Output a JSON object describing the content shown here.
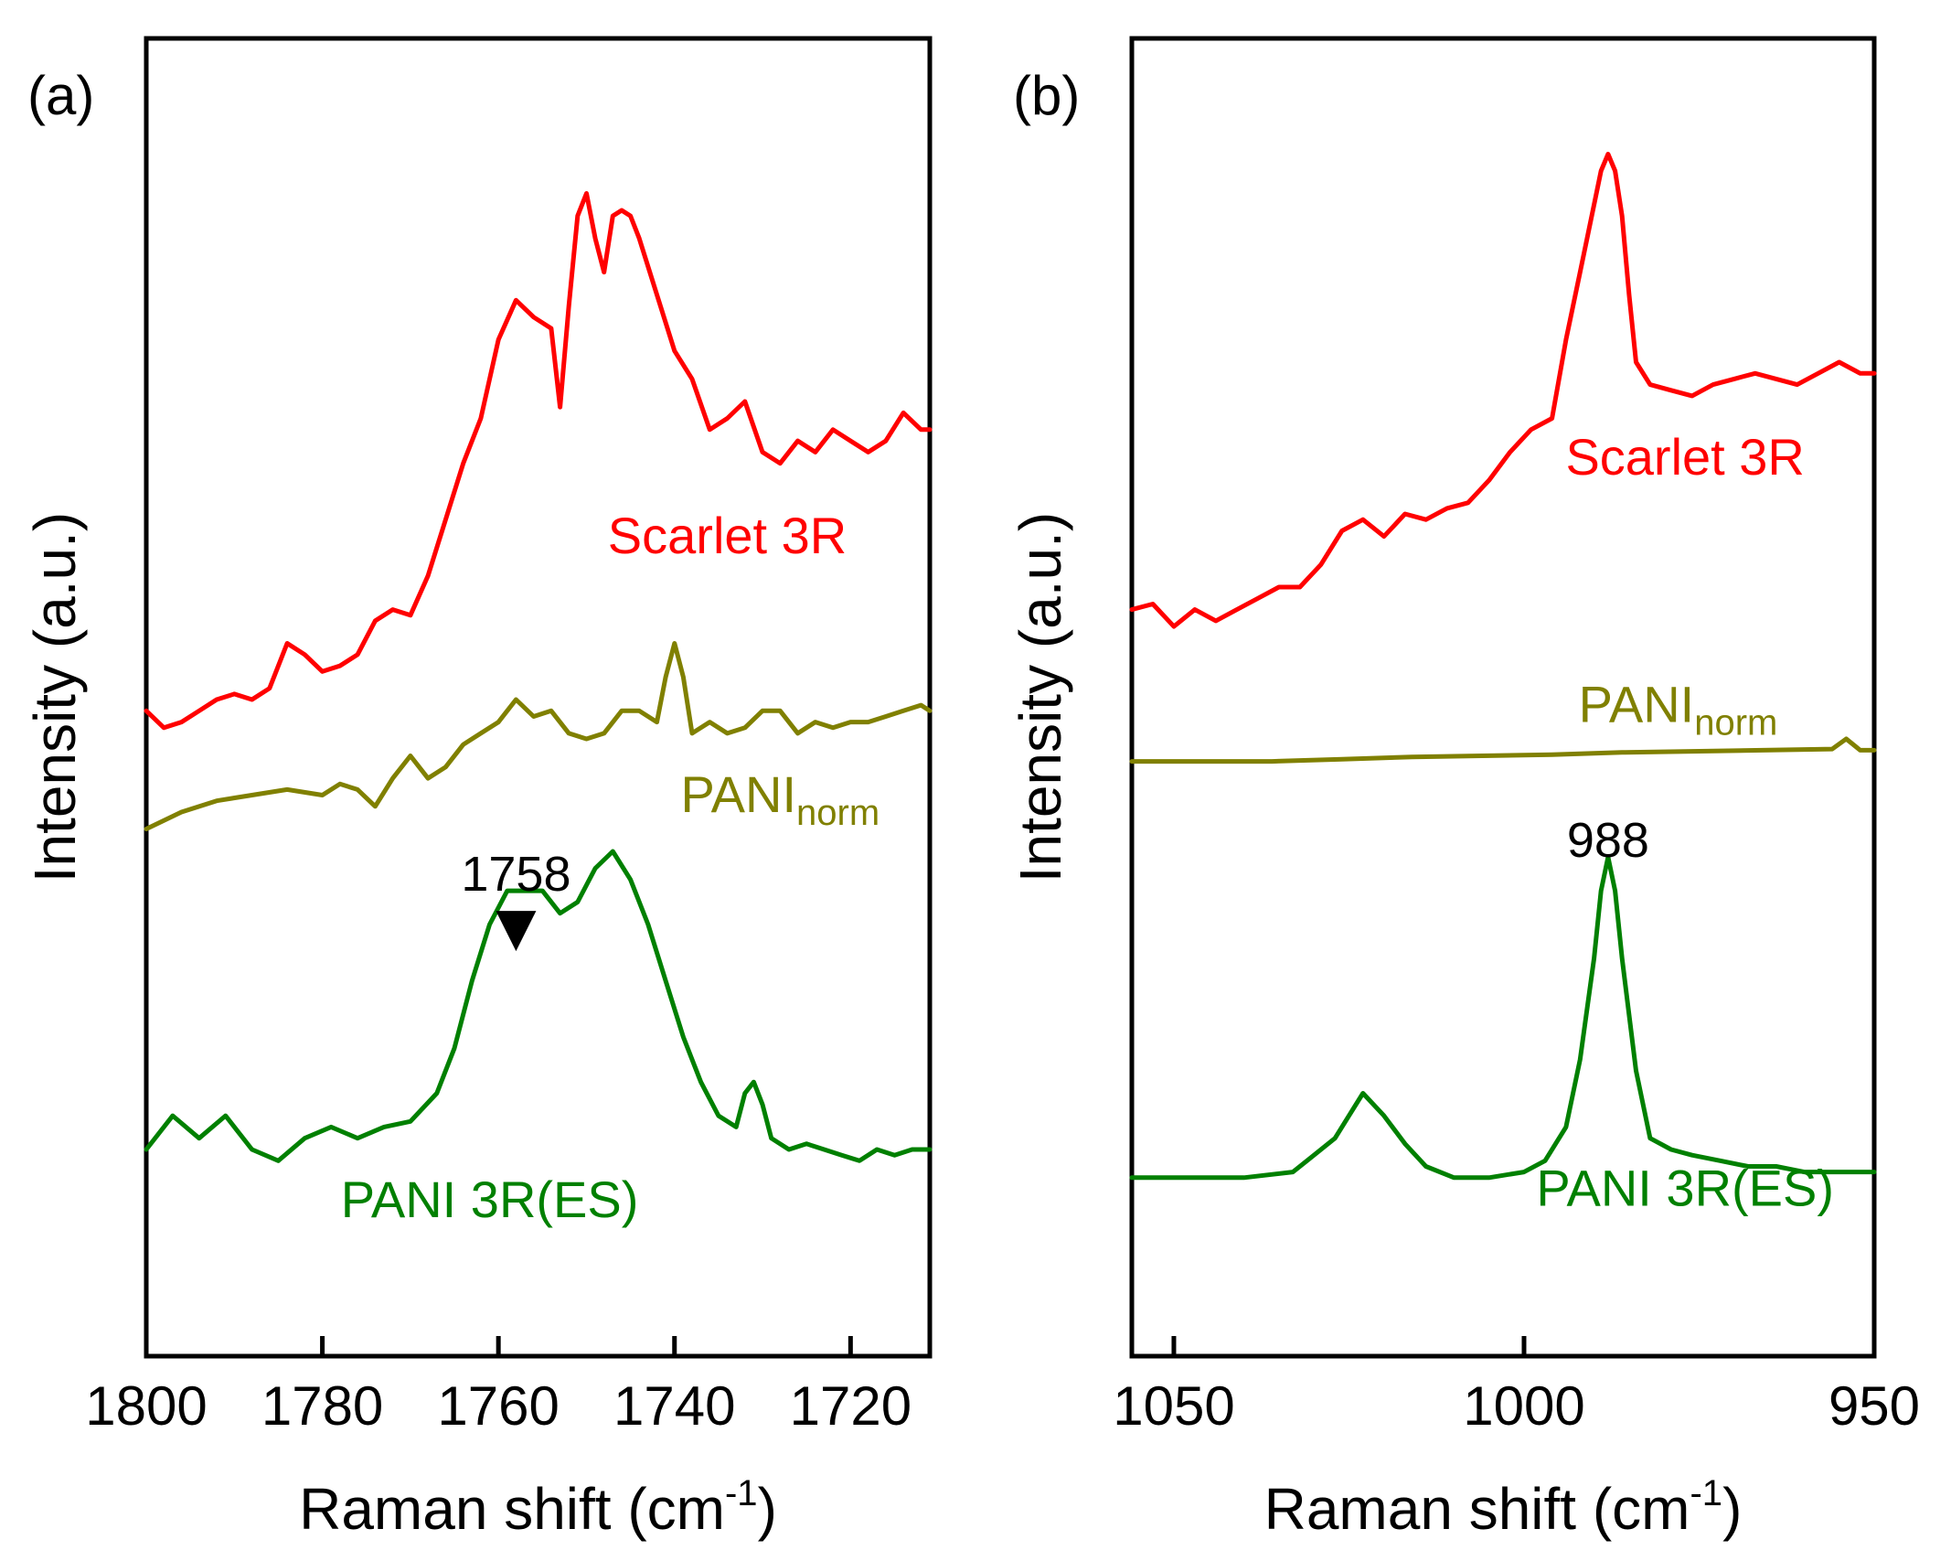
{
  "chart_data": [
    {
      "type": "line",
      "panel_label": "(a)",
      "xlabel": "Raman shift (cm",
      "xlabel_sup": "-1",
      "xlabel_end": ")",
      "ylabel": "Intensity (a.u.)",
      "xlim": [
        1800,
        1711
      ],
      "ylim": [
        0,
        100
      ],
      "x_reversed": true,
      "y_ticks_shown": false,
      "xticks": [
        1800,
        1780,
        1760,
        1740,
        1720
      ],
      "xtick_labels": [
        "1800",
        "1780",
        "1760",
        "1740",
        "1720"
      ],
      "annotations": [
        {
          "text": "1758",
          "x": 1758,
          "y": 33,
          "marker": "down-triangle"
        }
      ],
      "series": [
        {
          "name": "Scarlet 3R",
          "color": "#ff0000",
          "label_pos": {
            "x": 1734,
            "y": 63
          },
          "x": [
            1800,
            1798,
            1796,
            1794,
            1792,
            1790,
            1788,
            1786,
            1784,
            1782,
            1780,
            1778,
            1776,
            1774,
            1772,
            1770,
            1768,
            1766,
            1764,
            1762,
            1760,
            1758,
            1756,
            1754,
            1753,
            1752,
            1751,
            1750,
            1749,
            1748,
            1747,
            1746,
            1745,
            1744,
            1742,
            1740,
            1738,
            1736,
            1734,
            1732,
            1730,
            1728,
            1726,
            1724,
            1722,
            1720,
            1718,
            1716,
            1714,
            1712,
            1711
          ],
          "values": [
            49,
            47.5,
            48,
            49,
            50,
            50.5,
            50,
            51,
            55,
            54,
            52.5,
            53,
            54,
            57,
            58,
            57.5,
            61,
            66,
            71,
            75,
            82,
            85.5,
            84,
            83,
            76,
            85,
            93,
            95,
            91,
            88,
            93,
            93.5,
            93,
            91,
            86,
            81,
            78.5,
            74,
            75,
            76.5,
            72,
            71,
            73,
            72,
            74,
            73,
            72,
            73,
            75.5,
            74,
            74
          ]
        },
        {
          "name": "PANI",
          "name_sub": "norm",
          "color": "#808000",
          "label_pos": {
            "x": 1728,
            "y": 40
          },
          "x": [
            1800,
            1796,
            1792,
            1788,
            1784,
            1780,
            1778,
            1776,
            1774,
            1772,
            1770,
            1768,
            1766,
            1764,
            1762,
            1760,
            1758,
            1756,
            1754,
            1752,
            1750,
            1748,
            1746,
            1744,
            1742,
            1741,
            1740,
            1739,
            1738,
            1736,
            1734,
            1732,
            1730,
            1728,
            1726,
            1724,
            1722,
            1720,
            1718,
            1716,
            1714,
            1712,
            1711
          ],
          "values": [
            38.5,
            40,
            41,
            41.5,
            42,
            41.5,
            42.5,
            42,
            40.5,
            43,
            45,
            43,
            44,
            46,
            47,
            48,
            50,
            48.5,
            49,
            47,
            46.5,
            47,
            49,
            49,
            48,
            52,
            55,
            52,
            47,
            48,
            47,
            47.5,
            49,
            49,
            47,
            48,
            47.5,
            48,
            48,
            48.5,
            49,
            49.5,
            49
          ]
        },
        {
          "name": "PANI 3R(ES)",
          "color": "#008000",
          "label_pos": {
            "x": 1761,
            "y": 4
          },
          "x": [
            1800,
            1797,
            1794,
            1791,
            1788,
            1785,
            1782,
            1779,
            1776,
            1773,
            1770,
            1767,
            1765,
            1763,
            1761,
            1759,
            1757,
            1755,
            1753,
            1751,
            1749,
            1747,
            1745,
            1743,
            1741,
            1739,
            1737,
            1735,
            1733,
            1732,
            1731,
            1730,
            1729,
            1727,
            1725,
            1723,
            1721,
            1719,
            1717,
            1715,
            1713,
            1711
          ],
          "values": [
            10,
            13,
            11,
            13,
            10,
            9,
            11,
            12,
            11,
            12,
            12.5,
            15,
            19,
            25,
            30,
            33,
            33,
            33,
            31,
            32,
            35,
            36.5,
            34,
            30,
            25,
            20,
            16,
            13,
            12,
            15,
            16,
            14,
            11,
            10,
            10.5,
            10,
            9.5,
            9,
            10,
            9.5,
            10,
            10
          ]
        }
      ]
    },
    {
      "type": "line",
      "panel_label": "(b)",
      "xlabel": "Raman shift (cm",
      "xlabel_sup": "-1",
      "xlabel_end": ")",
      "ylabel": "Intensity (a.u.)",
      "xlim": [
        1056,
        950
      ],
      "ylim": [
        0,
        100
      ],
      "x_reversed": true,
      "y_ticks_shown": false,
      "xticks": [
        1050,
        1000,
        950
      ],
      "xtick_labels": [
        "1050",
        "1000",
        "950"
      ],
      "annotations": [
        {
          "text": "988",
          "x": 988,
          "y": 36
        }
      ],
      "series": [
        {
          "name": "Scarlet 3R",
          "color": "#ff0000",
          "label_pos": {
            "x": 977,
            "y": 70
          },
          "x": [
            1056,
            1053,
            1050,
            1047,
            1044,
            1041,
            1038,
            1035,
            1032,
            1029,
            1026,
            1023,
            1020,
            1017,
            1014,
            1011,
            1008,
            1005,
            1002,
            999,
            996,
            994,
            992,
            990,
            989,
            988,
            987,
            986,
            985,
            984,
            982,
            979,
            976,
            973,
            970,
            967,
            964,
            961,
            958,
            955,
            952,
            950
          ],
          "values": [
            58,
            58.5,
            56.5,
            58,
            57,
            58,
            59,
            60,
            60,
            62,
            65,
            66,
            64.5,
            66.5,
            66,
            67,
            67.5,
            69.5,
            72,
            74,
            75,
            82,
            88,
            94,
            97,
            98.5,
            97,
            93,
            86,
            80,
            78,
            77.5,
            77,
            78,
            78.5,
            79,
            78.5,
            78,
            79,
            80,
            79,
            79
          ]
        },
        {
          "name": "PANI",
          "name_sub": "norm",
          "color": "#808000",
          "label_pos": {
            "x": 978,
            "y": 48
          },
          "x": [
            1056,
            1046,
            1036,
            1026,
            1016,
            1006,
            996,
            986,
            976,
            966,
            956,
            954,
            952,
            950
          ],
          "values": [
            44.5,
            44.5,
            44.5,
            44.7,
            44.9,
            45,
            45.1,
            45.3,
            45.4,
            45.5,
            45.6,
            46.5,
            45.5,
            45.5
          ]
        },
        {
          "name": "PANI 3R(ES)",
          "color": "#008000",
          "label_pos": {
            "x": 977,
            "y": 5
          },
          "x": [
            1056,
            1048,
            1040,
            1033,
            1030,
            1027,
            1025,
            1023,
            1020,
            1017,
            1014,
            1010,
            1005,
            1000,
            997,
            994,
            992,
            990,
            989,
            988,
            987,
            986,
            984,
            982,
            979,
            976,
            972,
            968,
            964,
            960,
            955,
            950
          ],
          "values": [
            7.5,
            7.5,
            7.5,
            8,
            9.5,
            11,
            13,
            15,
            13,
            10.5,
            8.5,
            7.5,
            7.5,
            8,
            9,
            12,
            18,
            27,
            33,
            36,
            33,
            27,
            17,
            11,
            10,
            9.5,
            9,
            8.5,
            8.5,
            8,
            8,
            8
          ]
        }
      ]
    }
  ]
}
